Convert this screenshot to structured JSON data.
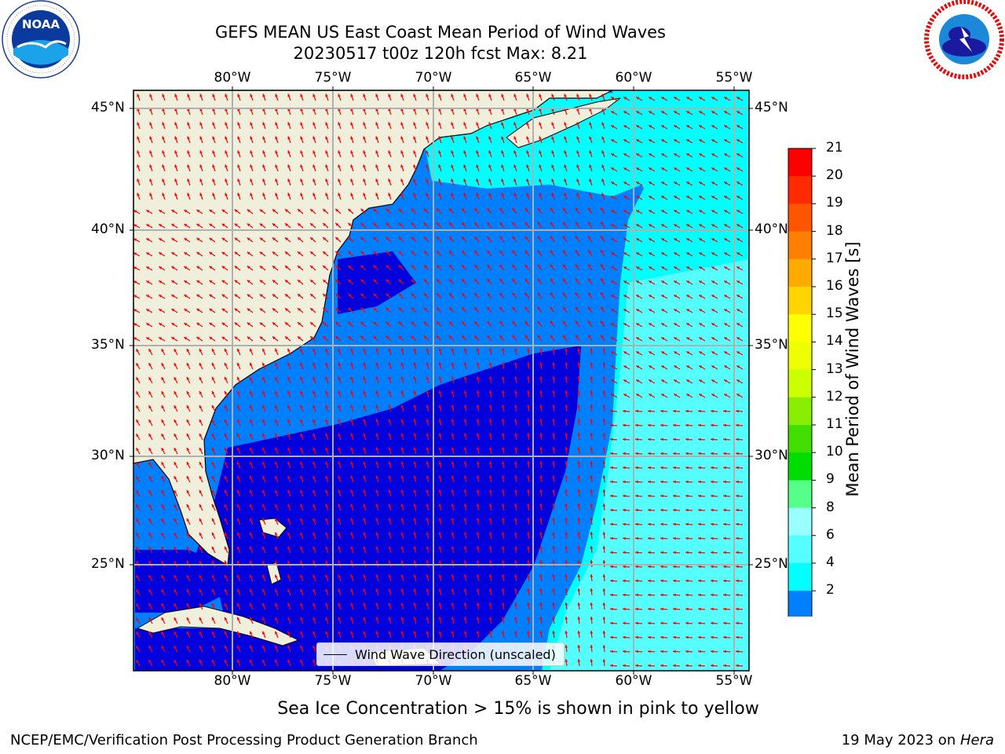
{
  "header": {
    "title_line1": "GEFS MEAN US East Coast Mean Period of Wind Waves",
    "title_line2": "20230517 t00z 120h fcst   Max: 8.21"
  },
  "logos": {
    "left": "NOAA",
    "left_ring_text": "NATIONAL OCEANIC AND ATMOSPHERIC ADMINISTRATION · U.S. DEPARTMENT OF COMMERCE",
    "right_ring_text": "NATIONAL WEATHER SERVICE"
  },
  "map": {
    "lon_labels": [
      "80°W",
      "75°W",
      "70°W",
      "65°W",
      "60°W",
      "55°W"
    ],
    "lat_labels": [
      "45°N",
      "40°N",
      "35°N",
      "30°N",
      "25°N"
    ],
    "legend_label": "Wind Wave Direction (unscaled)",
    "colors": {
      "land": "#efefdb",
      "period_2_4": "#0080ff",
      "period_4_6": "#00ffff",
      "period_6_8": "#55ffff",
      "period_below_2": "#0000dd",
      "arrows": "#ff0000",
      "grid": "#b0b0b0"
    }
  },
  "colorbar": {
    "label": "Mean Period of Wind Waves [s]",
    "ticks": [
      "21",
      "20",
      "19",
      "18",
      "17",
      "16",
      "15",
      "14",
      "13",
      "12",
      "11",
      "10",
      "9",
      "8",
      "6",
      "4",
      "2"
    ],
    "colors": [
      "#ff0000",
      "#ff2a00",
      "#ff5500",
      "#ff8000",
      "#ffaa00",
      "#ffd400",
      "#ffff00",
      "#eeff00",
      "#ccff00",
      "#88ee00",
      "#44dd00",
      "#00dd00",
      "#55ff88",
      "#99ffff",
      "#55ffff",
      "#00ffff",
      "#0080ff"
    ],
    "extend_color": "#0000ff"
  },
  "caption": "Sea Ice Concentration > 15% is shown in pink to yellow",
  "footer": {
    "left": "NCEP/EMC/Verification Post Processing Product Generation Branch",
    "right_prefix": "19 May 2023 on ",
    "right_machine": "Hera"
  }
}
